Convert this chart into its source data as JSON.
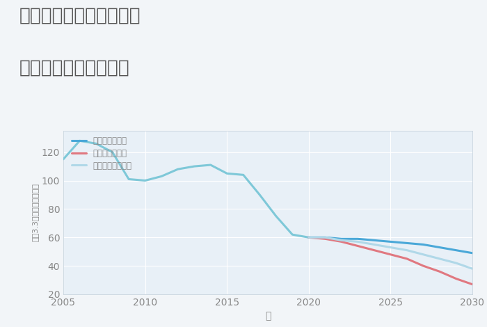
{
  "title_line1": "岐阜県本巣市根尾板所の",
  "title_line2": "中古戸建ての価格推移",
  "xlabel": "年",
  "ylabel": "坪（3.3㎡）単価（万円）",
  "background_color": "#f2f5f8",
  "plot_bg_color": "#e8f0f7",
  "grid_color": "#ffffff",
  "years_historical": [
    2005,
    2006,
    2007,
    2008,
    2009,
    2010,
    2011,
    2012,
    2013,
    2014,
    2015,
    2016,
    2017,
    2018,
    2019,
    2020
  ],
  "values_historical": [
    115,
    128,
    126,
    120,
    101,
    100,
    103,
    108,
    110,
    111,
    105,
    104,
    90,
    75,
    62,
    60
  ],
  "years_forecast": [
    2020,
    2021,
    2022,
    2023,
    2024,
    2025,
    2026,
    2027,
    2028,
    2029,
    2030
  ],
  "good_scenario": [
    60,
    60,
    59,
    59,
    58,
    57,
    56,
    55,
    53,
    51,
    49
  ],
  "bad_scenario": [
    60,
    59,
    57,
    54,
    51,
    48,
    45,
    40,
    36,
    31,
    27
  ],
  "normal_scenario": [
    60,
    60,
    58,
    57,
    55,
    53,
    51,
    48,
    45,
    42,
    38
  ],
  "color_historical": "#7ec8d8",
  "color_good": "#4aa8d8",
  "color_bad": "#e07880",
  "color_normal": "#b0d8e8",
  "ylim": [
    20,
    135
  ],
  "yticks": [
    20,
    40,
    60,
    80,
    100,
    120
  ],
  "xlim": [
    2005,
    2030
  ],
  "xticks": [
    2005,
    2010,
    2015,
    2020,
    2025,
    2030
  ],
  "legend_labels": [
    "グッドシナリオ",
    "バッドシナリオ",
    "ノーマルシナリオ"
  ],
  "title_color": "#555555",
  "axis_color": "#888888",
  "tick_fontsize": 10,
  "title_fontsize": 19,
  "label_fontsize": 10
}
